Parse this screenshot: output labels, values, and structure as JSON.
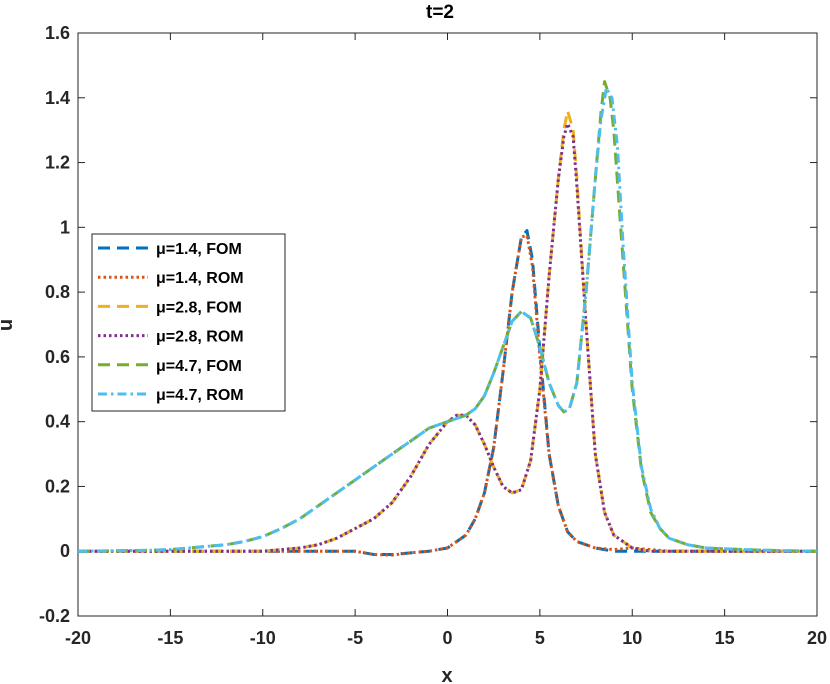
{
  "chart_data": {
    "type": "line",
    "title": "t=2",
    "xlabel": "x",
    "ylabel": "u",
    "xlim": [
      -20,
      20
    ],
    "ylim": [
      -0.2,
      1.6
    ],
    "xticks": [
      -20,
      -15,
      -10,
      -5,
      0,
      5,
      10,
      15,
      20
    ],
    "yticks": [
      -0.2,
      0,
      0.2,
      0.4,
      0.6,
      0.8,
      1,
      1.2,
      1.4,
      1.6
    ],
    "xtick_labels": [
      "-20",
      "-15",
      "-10",
      "-5",
      "0",
      "5",
      "10",
      "15",
      "20"
    ],
    "ytick_labels": [
      "-0.2",
      "0",
      "0.2",
      "0.4",
      "0.6",
      "0.8",
      "1",
      "1.2",
      "1.4",
      "1.6"
    ],
    "grid": false,
    "legend_position": "left",
    "series": [
      {
        "name": "μ=1.4, FOM",
        "color": "#0072BD",
        "style": "dashed",
        "points": [
          [
            -20,
            0
          ],
          [
            -10,
            0
          ],
          [
            -7,
            0
          ],
          [
            -5,
            0
          ],
          [
            -4,
            -0.01
          ],
          [
            -3,
            -0.01
          ],
          [
            -2,
            -0.005
          ],
          [
            -1,
            0
          ],
          [
            0,
            0.01
          ],
          [
            1,
            0.05
          ],
          [
            1.5,
            0.1
          ],
          [
            2,
            0.18
          ],
          [
            2.5,
            0.32
          ],
          [
            3,
            0.55
          ],
          [
            3.5,
            0.8
          ],
          [
            4,
            0.97
          ],
          [
            4.3,
            0.99
          ],
          [
            4.6,
            0.9
          ],
          [
            5,
            0.62
          ],
          [
            5.5,
            0.3
          ],
          [
            6,
            0.14
          ],
          [
            6.5,
            0.06
          ],
          [
            7,
            0.03
          ],
          [
            8,
            0.01
          ],
          [
            9,
            0
          ],
          [
            12,
            0
          ],
          [
            20,
            0
          ]
        ]
      },
      {
        "name": "μ=1.4, ROM",
        "color": "#D95319",
        "style": "dotted",
        "points": [
          [
            -20,
            0
          ],
          [
            -10,
            0
          ],
          [
            -7,
            0
          ],
          [
            -5,
            0
          ],
          [
            -4,
            -0.01
          ],
          [
            -3,
            -0.012
          ],
          [
            -2,
            -0.005
          ],
          [
            -1,
            0
          ],
          [
            0,
            0.01
          ],
          [
            1,
            0.05
          ],
          [
            1.5,
            0.1
          ],
          [
            2,
            0.18
          ],
          [
            2.5,
            0.32
          ],
          [
            3,
            0.55
          ],
          [
            3.5,
            0.8
          ],
          [
            4,
            0.97
          ],
          [
            4.3,
            0.975
          ],
          [
            4.6,
            0.88
          ],
          [
            5,
            0.6
          ],
          [
            5.5,
            0.3
          ],
          [
            6,
            0.14
          ],
          [
            6.5,
            0.06
          ],
          [
            7,
            0.03
          ],
          [
            8,
            0.01
          ],
          [
            9,
            0.005
          ],
          [
            10,
            0.01
          ],
          [
            12,
            0
          ],
          [
            20,
            0
          ]
        ]
      },
      {
        "name": "μ=2.8, FOM",
        "color": "#EDB120",
        "style": "dashed",
        "points": [
          [
            -20,
            0
          ],
          [
            -12,
            0
          ],
          [
            -10,
            0
          ],
          [
            -9,
            0.005
          ],
          [
            -8,
            0.01
          ],
          [
            -7,
            0.02
          ],
          [
            -6,
            0.04
          ],
          [
            -5,
            0.07
          ],
          [
            -4,
            0.1
          ],
          [
            -3,
            0.15
          ],
          [
            -2,
            0.23
          ],
          [
            -1,
            0.33
          ],
          [
            0,
            0.4
          ],
          [
            0.5,
            0.42
          ],
          [
            1,
            0.42
          ],
          [
            1.5,
            0.39
          ],
          [
            2,
            0.33
          ],
          [
            2.5,
            0.26
          ],
          [
            3,
            0.2
          ],
          [
            3.5,
            0.18
          ],
          [
            4,
            0.19
          ],
          [
            4.5,
            0.28
          ],
          [
            5,
            0.5
          ],
          [
            5.5,
            0.85
          ],
          [
            6,
            1.15
          ],
          [
            6.3,
            1.3
          ],
          [
            6.5,
            1.36
          ],
          [
            6.8,
            1.3
          ],
          [
            7,
            1.15
          ],
          [
            7.5,
            0.7
          ],
          [
            8,
            0.3
          ],
          [
            8.5,
            0.12
          ],
          [
            9,
            0.05
          ],
          [
            10,
            0.01
          ],
          [
            11,
            0
          ],
          [
            20,
            0
          ]
        ]
      },
      {
        "name": "μ=2.8, ROM",
        "color": "#7E2F8E",
        "style": "dotted",
        "points": [
          [
            -20,
            0
          ],
          [
            -12,
            0
          ],
          [
            -10,
            0
          ],
          [
            -9,
            0.005
          ],
          [
            -8,
            0.01
          ],
          [
            -7,
            0.02
          ],
          [
            -6,
            0.04
          ],
          [
            -5,
            0.07
          ],
          [
            -4,
            0.1
          ],
          [
            -3,
            0.15
          ],
          [
            -2,
            0.23
          ],
          [
            -1,
            0.33
          ],
          [
            0,
            0.4
          ],
          [
            0.5,
            0.42
          ],
          [
            1,
            0.42
          ],
          [
            1.5,
            0.39
          ],
          [
            2,
            0.33
          ],
          [
            2.5,
            0.26
          ],
          [
            3,
            0.2
          ],
          [
            3.5,
            0.18
          ],
          [
            4,
            0.19
          ],
          [
            4.5,
            0.28
          ],
          [
            5,
            0.5
          ],
          [
            5.5,
            0.85
          ],
          [
            6,
            1.15
          ],
          [
            6.3,
            1.28
          ],
          [
            6.5,
            1.32
          ],
          [
            6.8,
            1.28
          ],
          [
            7,
            1.13
          ],
          [
            7.5,
            0.7
          ],
          [
            8,
            0.3
          ],
          [
            8.5,
            0.12
          ],
          [
            9,
            0.05
          ],
          [
            10,
            0.01
          ],
          [
            11,
            0
          ],
          [
            20,
            0
          ]
        ]
      },
      {
        "name": "μ=4.7, FOM",
        "color": "#77AC30",
        "style": "dashed",
        "points": [
          [
            -20,
            0
          ],
          [
            -16,
            0.003
          ],
          [
            -15,
            0.005
          ],
          [
            -14,
            0.01
          ],
          [
            -12,
            0.02
          ],
          [
            -11,
            0.03
          ],
          [
            -10,
            0.045
          ],
          [
            -9,
            0.07
          ],
          [
            -8,
            0.1
          ],
          [
            -7,
            0.14
          ],
          [
            -6,
            0.18
          ],
          [
            -5,
            0.22
          ],
          [
            -4,
            0.26
          ],
          [
            -3,
            0.3
          ],
          [
            -2,
            0.34
          ],
          [
            -1,
            0.38
          ],
          [
            0,
            0.4
          ],
          [
            0.5,
            0.41
          ],
          [
            1,
            0.42
          ],
          [
            1.5,
            0.44
          ],
          [
            2,
            0.48
          ],
          [
            2.5,
            0.55
          ],
          [
            3,
            0.63
          ],
          [
            3.5,
            0.71
          ],
          [
            4,
            0.74
          ],
          [
            4.5,
            0.72
          ],
          [
            5,
            0.63
          ],
          [
            5.5,
            0.52
          ],
          [
            6,
            0.45
          ],
          [
            6.3,
            0.43
          ],
          [
            6.6,
            0.44
          ],
          [
            7,
            0.52
          ],
          [
            7.5,
            0.8
          ],
          [
            8,
            1.15
          ],
          [
            8.3,
            1.35
          ],
          [
            8.5,
            1.45
          ],
          [
            8.8,
            1.4
          ],
          [
            9,
            1.3
          ],
          [
            9.5,
            0.9
          ],
          [
            10,
            0.5
          ],
          [
            10.5,
            0.25
          ],
          [
            11,
            0.12
          ],
          [
            11.5,
            0.07
          ],
          [
            12,
            0.04
          ],
          [
            13,
            0.02
          ],
          [
            14,
            0.01
          ],
          [
            16,
            0.005
          ],
          [
            18,
            0.002
          ],
          [
            20,
            0
          ]
        ]
      },
      {
        "name": "μ=4.7, ROM",
        "color": "#4DBEEE",
        "style": "dashdot",
        "points": [
          [
            -20,
            0
          ],
          [
            -16,
            0.003
          ],
          [
            -15,
            0.005
          ],
          [
            -14,
            0.01
          ],
          [
            -12,
            0.02
          ],
          [
            -11,
            0.03
          ],
          [
            -10,
            0.045
          ],
          [
            -9,
            0.07
          ],
          [
            -8,
            0.1
          ],
          [
            -7,
            0.14
          ],
          [
            -6,
            0.18
          ],
          [
            -5,
            0.22
          ],
          [
            -4,
            0.26
          ],
          [
            -3,
            0.3
          ],
          [
            -2,
            0.34
          ],
          [
            -1,
            0.38
          ],
          [
            0,
            0.4
          ],
          [
            0.5,
            0.41
          ],
          [
            1,
            0.42
          ],
          [
            1.5,
            0.44
          ],
          [
            2,
            0.48
          ],
          [
            2.5,
            0.55
          ],
          [
            3,
            0.63
          ],
          [
            3.5,
            0.71
          ],
          [
            4,
            0.74
          ],
          [
            4.5,
            0.72
          ],
          [
            5,
            0.63
          ],
          [
            5.5,
            0.52
          ],
          [
            6,
            0.45
          ],
          [
            6.3,
            0.43
          ],
          [
            6.6,
            0.44
          ],
          [
            7,
            0.52
          ],
          [
            7.5,
            0.8
          ],
          [
            8,
            1.15
          ],
          [
            8.3,
            1.33
          ],
          [
            8.6,
            1.43
          ],
          [
            8.9,
            1.4
          ],
          [
            9.2,
            1.25
          ],
          [
            9.5,
            0.95
          ],
          [
            10,
            0.52
          ],
          [
            10.5,
            0.26
          ],
          [
            11,
            0.13
          ],
          [
            11.5,
            0.07
          ],
          [
            12,
            0.04
          ],
          [
            13,
            0.02
          ],
          [
            14,
            0.01
          ],
          [
            16,
            0.005
          ],
          [
            18,
            0.002
          ],
          [
            20,
            0
          ]
        ]
      }
    ]
  }
}
